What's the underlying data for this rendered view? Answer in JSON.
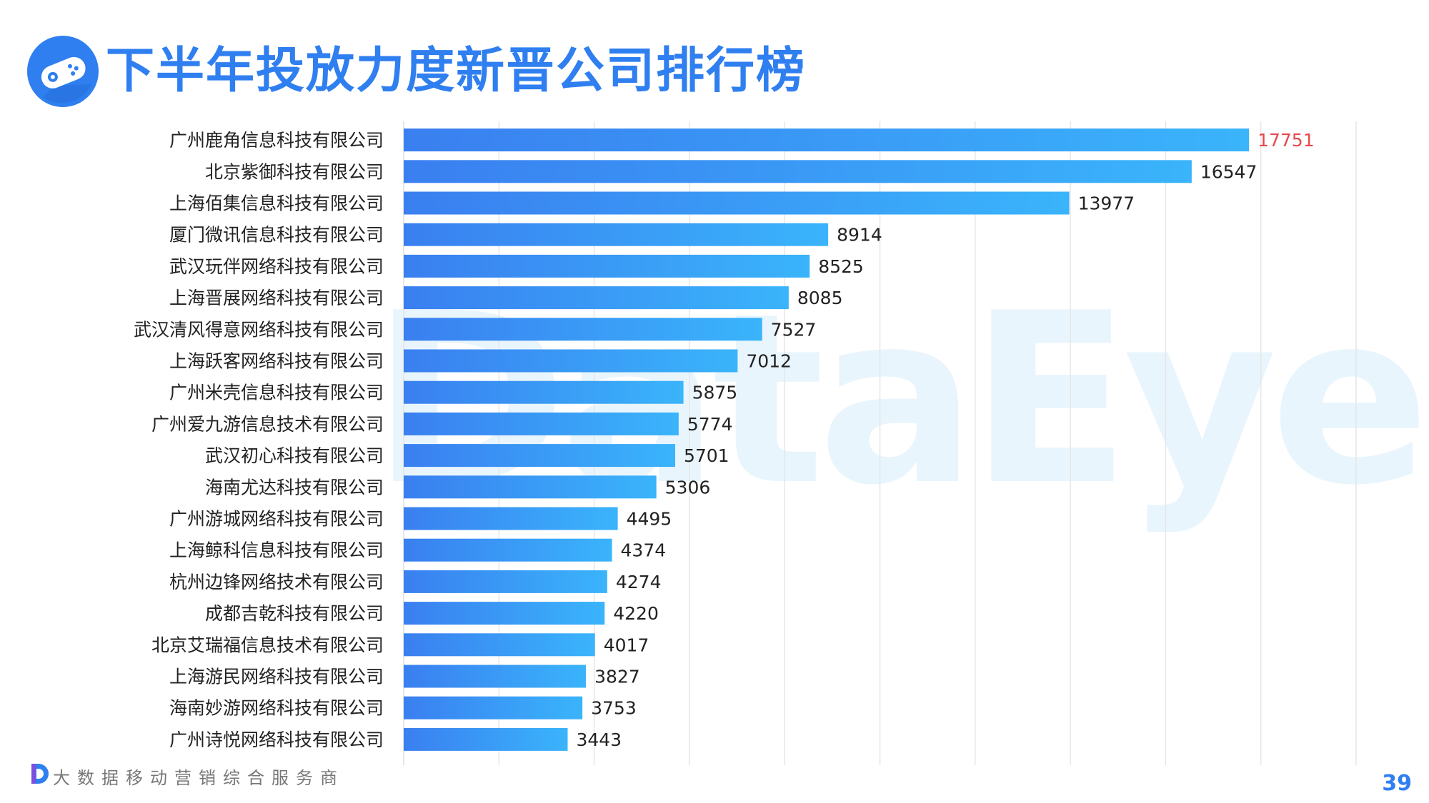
{
  "header": {
    "title": "下半年投放力度新晋公司排行榜"
  },
  "watermark": "DataEye",
  "footer": {
    "tagline": "大数据移动营销综合服务商",
    "page_number": "39"
  },
  "colors": {
    "title": "#2f7ff0",
    "bar_start": "#3a7ff0",
    "bar_end": "#3ab4fb",
    "top_value": "#e8484b",
    "value": "#222222",
    "label": "#222222",
    "grid": "#e6e6e6"
  },
  "chart_data": {
    "type": "bar",
    "orientation": "horizontal",
    "title": "下半年投放力度新晋公司排行榜",
    "xlim": [
      0,
      20000
    ],
    "grid": true,
    "categories": [
      "广州鹿角信息科技有限公司",
      "北京紫御科技有限公司",
      "上海佰集信息科技有限公司",
      "厦门微讯信息科技有限公司",
      "武汉玩伴网络科技有限公司",
      "上海晋展网络科技有限公司",
      "武汉清风得意网络科技有限公司",
      "上海跃客网络科技有限公司",
      "广州米壳信息科技有限公司",
      "广州爱九游信息技术有限公司",
      "武汉初心科技有限公司",
      "海南尤达科技有限公司",
      "广州游城网络科技有限公司",
      "上海鲸科信息科技有限公司",
      "杭州边锋网络技术有限公司",
      "成都吉乾科技有限公司",
      "北京艾瑞福信息技术有限公司",
      "上海游民网络科技有限公司",
      "海南妙游网络科技有限公司",
      "广州诗悦网络科技有限公司"
    ],
    "values": [
      17751,
      16547,
      13977,
      8914,
      8525,
      8085,
      7527,
      7012,
      5875,
      5774,
      5701,
      5306,
      4495,
      4374,
      4274,
      4220,
      4017,
      3827,
      3753,
      3443
    ],
    "highlight_index": 0
  }
}
